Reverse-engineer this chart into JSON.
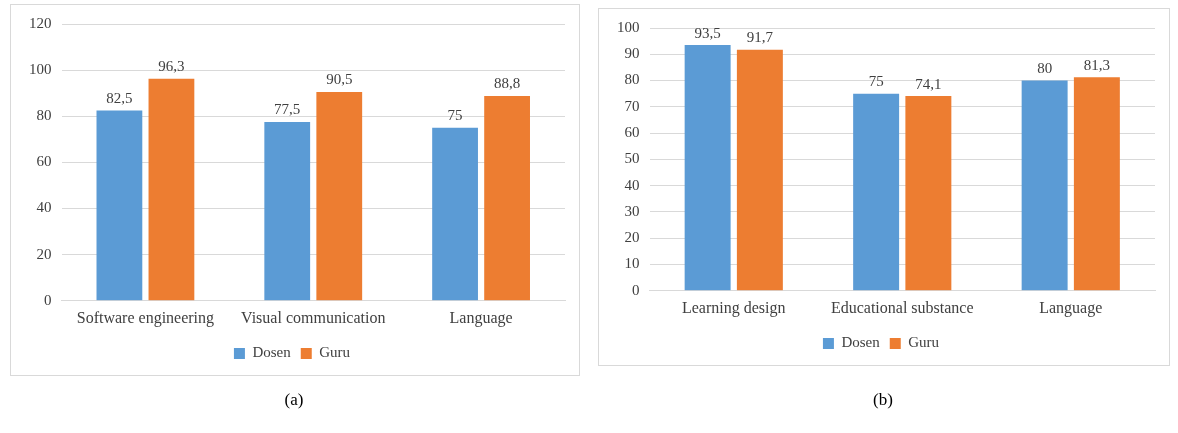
{
  "chart_data": [
    {
      "type": "bar",
      "categories": [
        "Software engineering",
        "Visual communication",
        "Language"
      ],
      "series": [
        {
          "name": "Dosen",
          "color": "#5b9bd5",
          "values": [
            82.5,
            77.5,
            75
          ],
          "value_labels": [
            "82,5",
            "77,5",
            "75"
          ]
        },
        {
          "name": "Guru",
          "color": "#ed7d31",
          "values": [
            96.3,
            90.5,
            88.8
          ],
          "value_labels": [
            "96,3",
            "90,5",
            "88,8"
          ]
        }
      ],
      "ylim": [
        0,
        120
      ],
      "yticks": [
        0,
        20,
        40,
        60,
        80,
        100,
        120
      ],
      "grid": "y",
      "legend": "bottom",
      "annotations": [
        "(a)"
      ]
    },
    {
      "type": "bar",
      "categories": [
        "Learning design",
        "Educational substance",
        "Language"
      ],
      "series": [
        {
          "name": "Dosen",
          "color": "#5b9bd5",
          "values": [
            93.5,
            75,
            80
          ],
          "value_labels": [
            "93,5",
            "75",
            "80"
          ]
        },
        {
          "name": "Guru",
          "color": "#ed7d31",
          "values": [
            91.7,
            74.1,
            81.3
          ],
          "value_labels": [
            "91,7",
            "74,1",
            "81,3"
          ]
        }
      ],
      "ylim": [
        0,
        100
      ],
      "yticks": [
        0,
        10,
        20,
        30,
        40,
        50,
        60,
        70,
        80,
        90,
        100
      ],
      "grid": "y",
      "legend": "bottom",
      "annotations": [
        "(b)"
      ]
    }
  ]
}
